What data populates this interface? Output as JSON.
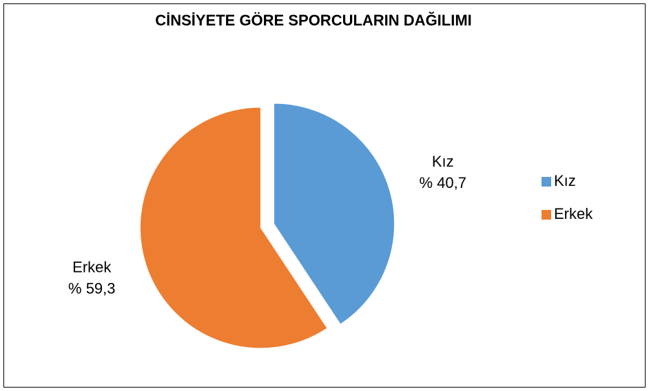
{
  "chart_data": {
    "type": "pie",
    "title": "CİNSİYETE GÖRE SPORCULARIN DAĞILIMI",
    "categories": [
      "Kız",
      "Erkek"
    ],
    "values": [
      40.7,
      59.3
    ],
    "value_labels": [
      "% 40,7",
      "% 59,3"
    ],
    "colors": [
      "#5b9bd5",
      "#ed7d31"
    ],
    "legend": "right"
  }
}
